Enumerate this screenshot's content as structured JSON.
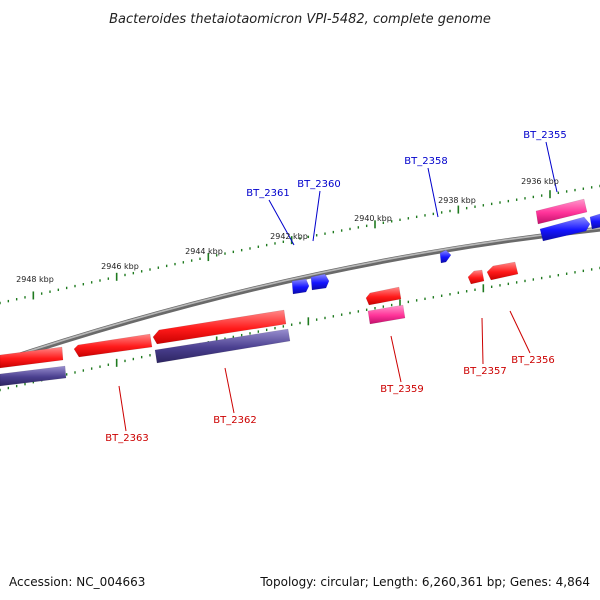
{
  "title": "Bacteroides thetaiotaomicron VPI-5482, complete genome",
  "footer": {
    "accession": "Accession: NC_004663",
    "summary": "Topology: circular; Length: 6,260,361 bp; Genes: 4,864"
  },
  "colors": {
    "backbone": "#7a7a7a",
    "tick": "#1f7a1f",
    "forward_gene": "#ff1a1a",
    "forward_gene_pink": "#ff3399",
    "reverse_gene": "#1414ff",
    "reverse_gene_navy": "#4a3f8f",
    "label_red": "#cc0000",
    "label_blue": "#0000cc"
  },
  "kbp_labels": [
    "2948 kbp",
    "2946 kbp",
    "2944 kbp",
    "2942 kbp",
    "2940 kbp",
    "2938 kbp",
    "2936 kbp"
  ],
  "genes": [
    {
      "label": "BT_2355",
      "color": "label_blue"
    },
    {
      "label": "BT_2356",
      "color": "label_red"
    },
    {
      "label": "BT_2357",
      "color": "label_red"
    },
    {
      "label": "BT_2358",
      "color": "label_blue"
    },
    {
      "label": "BT_2359",
      "color": "label_red"
    },
    {
      "label": "BT_2360",
      "color": "label_blue"
    },
    {
      "label": "BT_2361",
      "color": "label_blue"
    },
    {
      "label": "BT_2362",
      "color": "label_red"
    },
    {
      "label": "BT_2363",
      "color": "label_red"
    }
  ]
}
